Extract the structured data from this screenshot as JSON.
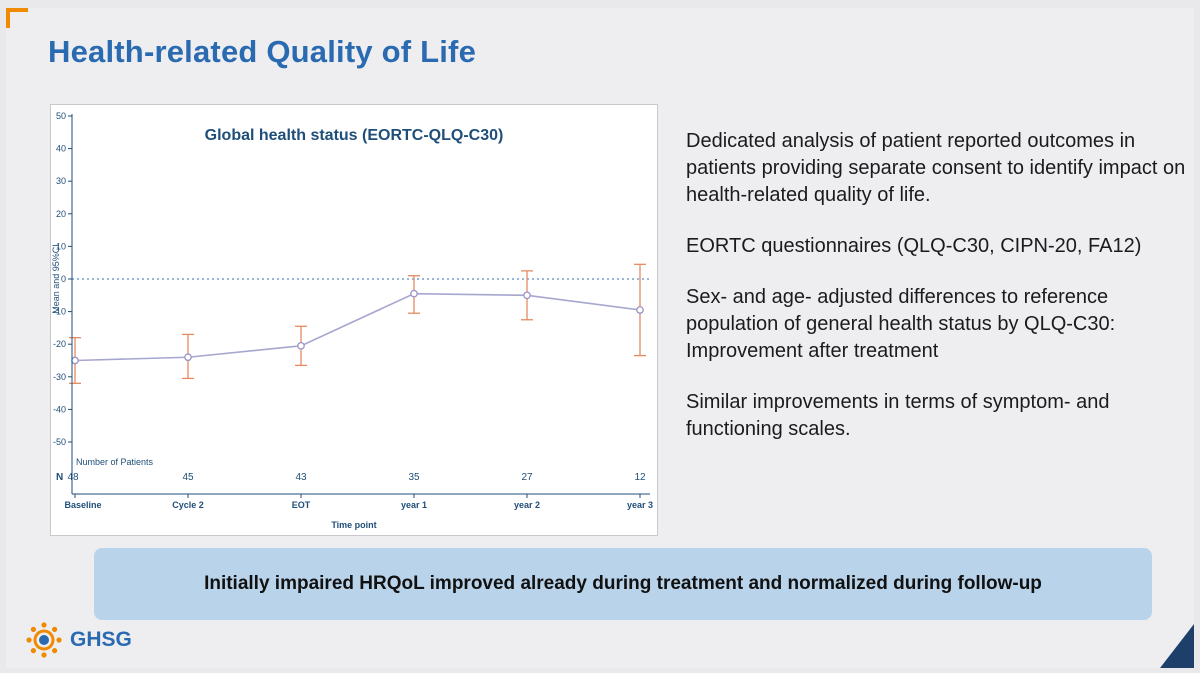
{
  "slide": {
    "title": "Health-related Quality of Life",
    "bullets": [
      "Dedicated analysis of patient reported outcomes in patients providing separate consent to identify impact on health-related quality of life.",
      "EORTC questionnaires (QLQ-C30, CIPN-20, FA12)",
      "Sex- and age- adjusted differences to reference population of general health status by QLQ-C30: Improvement after treatment",
      "Similar improvements in terms of symptom- and functioning scales."
    ],
    "conclusion": "Initially impaired HRQoL improved already during treatment and normalized during follow-up",
    "logo_text": "GHSG"
  },
  "colors": {
    "title": "#2a6ab0",
    "axis": "#1f4e79",
    "line": "#a7a6cf",
    "error_bar": "#e48a62",
    "reference": "#2f6bb3",
    "banner": "#b9d3ea",
    "accent": "#f08a00"
  },
  "chart_data": {
    "type": "line",
    "title": "Global health status (EORTC-QLQ-C30)",
    "xlabel": "Time point",
    "ylabel": "Mean and 95%CI",
    "categories": [
      "Baseline",
      "Cycle 2",
      "EOT",
      "year 1",
      "year 2",
      "year 3"
    ],
    "series": [
      {
        "name": "Mean",
        "values": [
          -25,
          -24,
          -20.5,
          -4.5,
          -5,
          -9.5
        ],
        "ci_lower": [
          -32,
          -30.5,
          -26.5,
          -10.5,
          -12.5,
          -23.5
        ],
        "ci_upper": [
          -18,
          -17,
          -14.5,
          1,
          2.5,
          4.5
        ]
      }
    ],
    "ylim": [
      -50,
      50
    ],
    "yticks": [
      50,
      40,
      30,
      20,
      10,
      0,
      -10,
      -20,
      -30,
      -40,
      -50
    ],
    "reference_line": 0,
    "n_label": "Number of Patients",
    "n_prefix": "N",
    "n_values": [
      48,
      45,
      43,
      35,
      27,
      12
    ]
  }
}
